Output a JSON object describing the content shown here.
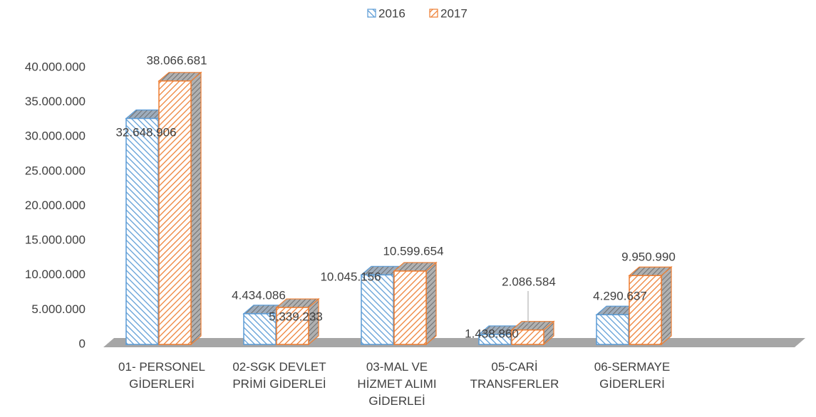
{
  "chart_data": {
    "type": "bar3d",
    "categories": [
      "01- PERSONEL GİDERLERİ",
      "02-SGK DEVLET PRİMİ GİDERLEİ",
      "03-MAL VE HİZMET ALIMI GİDERLEİ",
      "05-CARİ TRANSFERLER",
      "06-SERMAYE GİDERLERİ"
    ],
    "series": [
      {
        "name": "2016",
        "color": "#5b9bd5",
        "values": [
          32648906,
          4434086,
          10045156,
          1438860,
          4290637
        ],
        "value_labels": [
          "32.648.906",
          "4.434.086",
          "10.045.156",
          "1.438.860",
          "4.290.637"
        ]
      },
      {
        "name": "2017",
        "color": "#ed7d31",
        "values": [
          38066681,
          5339233,
          10599654,
          2086584,
          9950990
        ],
        "value_labels": [
          "38.066.681",
          "5.339.233",
          "10.599.654",
          "2.086.584",
          "9.950.990"
        ]
      }
    ],
    "ylim": [
      0,
      40000000
    ],
    "yticks": [
      0,
      {
        "value": 5000000,
        "label": "5.000.000"
      },
      {
        "value": 10000000,
        "label": "10.000.000"
      },
      {
        "value": 15000000,
        "label": "15.000.000"
      },
      {
        "value": 20000000,
        "label": "20.000.000"
      },
      {
        "value": 25000000,
        "label": "25.000.000"
      },
      {
        "value": 30000000,
        "label": "30.000.000"
      },
      {
        "value": 35000000,
        "label": "35.000.000"
      },
      {
        "value": 40000000,
        "label": "40.000.000"
      }
    ],
    "legend": "top"
  }
}
